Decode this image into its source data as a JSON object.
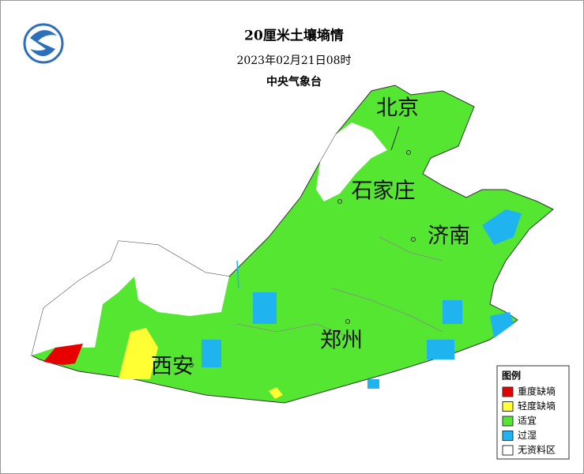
{
  "header": {
    "title": "20厘米土壤墒情",
    "time": "2023年02月21日08时",
    "agency": "中央气象台"
  },
  "cities": [
    {
      "label": "北京"
    },
    {
      "label": "石家庄"
    },
    {
      "label": "济南"
    },
    {
      "label": "郑州"
    },
    {
      "label": "西安"
    }
  ],
  "legend": {
    "title": "图例",
    "items": [
      {
        "label": "重度缺墒",
        "color": "#e60000"
      },
      {
        "label": "轻度缺墒",
        "color": "#ffff33"
      },
      {
        "label": "适宜",
        "color": "#55e632"
      },
      {
        "label": "过湿",
        "color": "#1fb4f0"
      },
      {
        "label": "无资料区",
        "color": "#ffffff"
      }
    ]
  }
}
